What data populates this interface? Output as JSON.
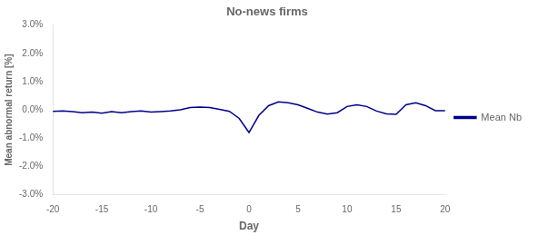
{
  "chart_data": {
    "type": "line",
    "title": "No-news firms",
    "x_label": "Day",
    "y_label": "Mean abnormal return [%]",
    "x": [
      -20,
      -19,
      -18,
      -17,
      -16,
      -15,
      -14,
      -13,
      -12,
      -11,
      -10,
      -9,
      -8,
      -7,
      -6,
      -5,
      -4,
      -3,
      -2,
      -1,
      0,
      1,
      2,
      3,
      4,
      5,
      6,
      7,
      8,
      9,
      10,
      11,
      12,
      13,
      14,
      15,
      16,
      17,
      18,
      19,
      20
    ],
    "series": [
      {
        "name": "Mean Nb",
        "color": "#00008B",
        "values": [
          -0.05,
          -0.04,
          -0.06,
          -0.1,
          -0.08,
          -0.12,
          -0.06,
          -0.1,
          -0.06,
          -0.04,
          -0.08,
          -0.06,
          -0.04,
          0.0,
          0.08,
          0.1,
          0.08,
          0.02,
          -0.05,
          -0.3,
          -0.8,
          -0.2,
          0.15,
          0.28,
          0.25,
          0.18,
          0.05,
          -0.08,
          -0.15,
          -0.1,
          0.12,
          0.18,
          0.12,
          -0.04,
          -0.14,
          -0.16,
          0.18,
          0.25,
          0.15,
          -0.03,
          -0.03
        ]
      }
    ],
    "xlim": [
      -20,
      20
    ],
    "ylim": [
      -3.0,
      3.0
    ],
    "xticks": [
      -20,
      -15,
      -10,
      -5,
      0,
      5,
      10,
      15,
      20
    ],
    "yticks": [
      {
        "value": -3.0,
        "label": "-3.0%"
      },
      {
        "value": -2.0,
        "label": "-2.0%"
      },
      {
        "value": -1.0,
        "label": "-1.0%"
      },
      {
        "value": 0.0,
        "label": "0.0%"
      },
      {
        "value": 1.0,
        "label": "1.0%"
      },
      {
        "value": 2.0,
        "label": "2.0%"
      },
      {
        "value": 3.0,
        "label": "3.0%"
      }
    ],
    "grid": false,
    "legend": "right"
  }
}
